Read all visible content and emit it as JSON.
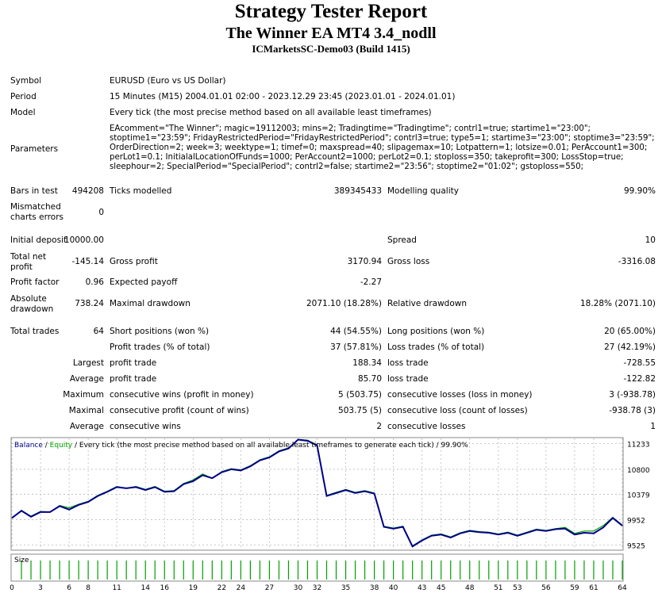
{
  "header": {
    "title": "Strategy Tester Report",
    "subtitle": "The Winner EA MT4 3.4_nodll",
    "server": "ICMarketsSC-Demo03 (Build 1415)"
  },
  "info": {
    "symbol_label": "Symbol",
    "symbol": "EURUSD (Euro vs US Dollar)",
    "period_label": "Period",
    "period": "15 Minutes (M15) 2004.01.01 02:00 - 2023.12.29 23:45 (2023.01.01 - 2024.01.01)",
    "model_label": "Model",
    "model": "Every tick (the most precise method based on all available least timeframes)",
    "parameters_label": "Parameters",
    "parameters": "EAcomment=\"The Winner\"; magic=19112003; mins=2; Tradingtime=\"Tradingtime\"; contrl1=true; startime1=\"23:00\"; stoptime1=\"23:59\"; FridayRestrictedPeriod=\"FridayRestrictedPeriod\"; contrl3=true; type5=1; startime3=\"23:00\"; stoptime3=\"23:59\"; OrderDirection=2; week=3; weektype=1; timef=0; maxspread=40; slipagemax=10; Lotpattern=1; lotsize=0.01; PerAccount1=300; perLot1=0.1; InitialalLocationOfFunds=1000; PerAccount2=1000; perLot2=0.1; stoploss=350; takeprofit=300; LossStop=true; sleephour=2; SpecialPeriod=\"SpecialPeriod\"; contrl2=false; startime2=\"23:56\"; stoptime2=\"01:02\"; gstoploss=550;"
  },
  "stats": {
    "bars_label": "Bars in test",
    "bars": "494208",
    "ticks_label": "Ticks modelled",
    "ticks": "389345433",
    "mq_label": "Modelling quality",
    "mq": "99.90%",
    "mismatch_label_1": "Mismatched",
    "mismatch_label_2": "charts errors",
    "mismatch": "0",
    "deposit_label": "Initial deposit",
    "deposit": "10000.00",
    "spread_label": "Spread",
    "spread": "10",
    "tnp_label_1": "Total net",
    "tnp_label_2": "profit",
    "tnp": "-145.14",
    "gp_label": "Gross profit",
    "gp": "3170.94",
    "gl_label": "Gross loss",
    "gl": "-3316.08",
    "pf_label": "Profit factor",
    "pf": "0.96",
    "ep_label": "Expected payoff",
    "ep": "-2.27",
    "ad_label_1": "Absolute",
    "ad_label_2": "drawdown",
    "ad": "738.24",
    "md_label": "Maximal drawdown",
    "md": "2071.10 (18.28%)",
    "rd_label": "Relative drawdown",
    "rd": "18.28% (2071.10)",
    "tt_label": "Total trades",
    "tt": "64",
    "sp_label": "Short positions (won %)",
    "sp": "44 (54.55%)",
    "lp_label": "Long positions (won %)",
    "lp": "20 (65.00%)",
    "pt_label": "Profit trades (% of total)",
    "pt": "37 (57.81%)",
    "lt_label": "Loss trades (% of total)",
    "lt": "27 (42.19%)",
    "largest_label": "Largest",
    "largest_pt_label": "profit trade",
    "largest_pt": "188.34",
    "largest_lt_label": "loss trade",
    "largest_lt": "-728.55",
    "average_label": "Average",
    "avg_pt_label": "profit trade",
    "avg_pt": "85.70",
    "avg_lt_label": "loss trade",
    "avg_lt": "-122.82",
    "maximum_label": "Maximum",
    "max_cw_label": "consecutive wins (profit in money)",
    "max_cw": "5 (503.75)",
    "max_cl_label": "consecutive losses (loss in money)",
    "max_cl": "3 (-938.78)",
    "maximal_label": "Maximal",
    "mx_cp_label": "consecutive profit (count of wins)",
    "mx_cp": "503.75 (5)",
    "mx_cl_label": "consecutive loss (count of losses)",
    "mx_cl": "-938.78 (3)",
    "average2_label": "Average",
    "avg_cw_label": "consecutive wins",
    "avg_cw": "2",
    "avg_cl_label": "consecutive losses",
    "avg_cl": "1"
  },
  "chart_data": {
    "type": "line",
    "legend_balance": "Balance",
    "legend_sep1": " / ",
    "legend_equity": "Equity",
    "legend_rest": " / Every tick (the most precise method based on all available least timeframes to generate each tick) / 99.90%",
    "size_label": "Size",
    "ylim": [
      9450,
      11320
    ],
    "yticks": [
      "11233",
      "10800",
      "10379",
      "9952",
      "9525"
    ],
    "xticks": [
      "0",
      "3",
      "6",
      "8",
      "11",
      "14",
      "16",
      "19",
      "22",
      "24",
      "27",
      "30",
      "32",
      "35",
      "38",
      "40",
      "43",
      "45",
      "48",
      "51",
      "53",
      "56",
      "59",
      "61",
      "64"
    ],
    "x": [
      0,
      1,
      2,
      3,
      4,
      5,
      6,
      7,
      8,
      9,
      10,
      11,
      12,
      13,
      14,
      15,
      16,
      17,
      18,
      19,
      20,
      21,
      22,
      23,
      24,
      25,
      26,
      27,
      28,
      29,
      30,
      31,
      32,
      33,
      34,
      35,
      36,
      37,
      38,
      39,
      40,
      41,
      42,
      43,
      44,
      45,
      46,
      47,
      48,
      49,
      50,
      51,
      52,
      53,
      54,
      55,
      56,
      57,
      58,
      59,
      60,
      61,
      62,
      63,
      64
    ],
    "series": [
      {
        "name": "Balance",
        "color": "#000088",
        "values": [
          9980,
          10100,
          10000,
          10080,
          10080,
          10180,
          10120,
          10200,
          10250,
          10350,
          10420,
          10500,
          10480,
          10500,
          10450,
          10500,
          10420,
          10430,
          10550,
          10600,
          10700,
          10650,
          10750,
          10800,
          10780,
          10850,
          10950,
          11000,
          11100,
          11150,
          11300,
          11280,
          11200,
          10350,
          10400,
          10450,
          10400,
          10430,
          10390,
          9830,
          9800,
          9830,
          9500,
          9600,
          9680,
          9700,
          9650,
          9720,
          9760,
          9740,
          9730,
          9700,
          9730,
          9680,
          9730,
          9780,
          9760,
          9790,
          9800,
          9700,
          9730,
          9720,
          9820,
          9980,
          9850
        ]
      },
      {
        "name": "Equity",
        "color": "#00a000",
        "values": [
          9980,
          10110,
          10010,
          10090,
          10080,
          10190,
          10150,
          10210,
          10260,
          10360,
          10430,
          10510,
          10480,
          10510,
          10460,
          10510,
          10430,
          10440,
          10560,
          10620,
          10720,
          10650,
          10760,
          10810,
          10790,
          10860,
          10960,
          11010,
          11110,
          11160,
          11300,
          11290,
          11210,
          10360,
          10410,
          10460,
          10410,
          10440,
          10400,
          9840,
          9810,
          9840,
          9510,
          9610,
          9690,
          9710,
          9660,
          9730,
          9770,
          9750,
          9740,
          9710,
          9740,
          9690,
          9740,
          9790,
          9770,
          9800,
          9820,
          9720,
          9760,
          9760,
          9850,
          9990,
          9860
        ]
      }
    ],
    "grid": true
  }
}
